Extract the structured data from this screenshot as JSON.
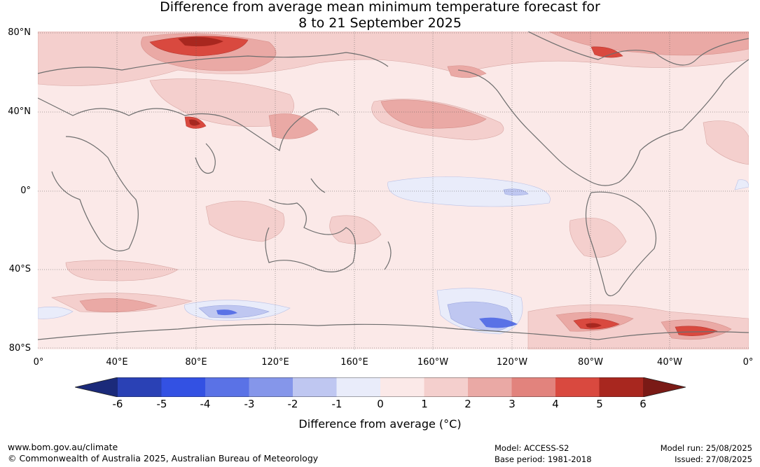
{
  "title": {
    "line1": "Difference from average mean minimum temperature forecast for",
    "line2": "8 to 21 September 2025"
  },
  "map": {
    "lat_labels": [
      "80°N",
      "40°N",
      "0°",
      "40°S",
      "80°S"
    ],
    "lon_labels": [
      "0°",
      "40°E",
      "80°E",
      "120°E",
      "160°E",
      "160°W",
      "120°W",
      "80°W",
      "40°W",
      "0°"
    ]
  },
  "legend": {
    "ticks": [
      "-6",
      "-5",
      "-4",
      "-3",
      "-2",
      "-1",
      "0",
      "1",
      "2",
      "3",
      "4",
      "5",
      "6"
    ],
    "colors": [
      "#1b2a7a",
      "#2a41b5",
      "#3351e3",
      "#5a72e6",
      "#8596ea",
      "#bfc7f1",
      "#e9ecfa",
      "#fbe9e8",
      "#f4cfcd",
      "#eaa9a5",
      "#e2837d",
      "#d9493f",
      "#a8271f",
      "#7a1a16"
    ],
    "label": "Difference from average (°C)"
  },
  "footer": {
    "website": "www.bom.gov.au/climate",
    "copyright": "© Commonwealth of Australia 2025, Australian Bureau of Meteorology",
    "model": "Model: ACCESS-S2",
    "base_period": "Base period: 1981-2018",
    "model_run": "Model run: 25/08/2025",
    "issued": "Issued: 27/08/2025"
  }
}
